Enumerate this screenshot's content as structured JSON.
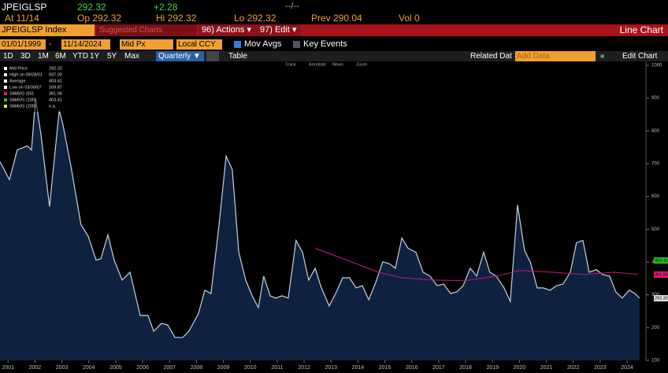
{
  "header": {
    "ticker": "JPEIGLSP",
    "last": "292.32",
    "change": "+2.28",
    "time": "--/--",
    "at": "At 11/14",
    "open": "Op 292.32",
    "high": "Hi 292.32",
    "low": "Lo 292.32",
    "prev": "Prev 290.04",
    "volume": "Vol 0"
  },
  "menu": {
    "security": "JPEIGLSP Index",
    "suggested": "Suggested Charts",
    "actions": "96) Actions ▾",
    "edit": "97) Edit ▾",
    "chart_type": "Line Chart"
  },
  "settings": {
    "start": "01/01/1999",
    "end": "11/14/2024",
    "field": "Mid Px",
    "currency": "Local CCY",
    "mov_avgs": "Mov Avgs",
    "key_events": "Key Events"
  },
  "toolbar": {
    "ranges": [
      "1D",
      "3D",
      "1M",
      "6M",
      "YTD",
      "1Y",
      "5Y",
      "Max"
    ],
    "period": "Quarterly ▼",
    "table": "Table",
    "related": "Related Dat",
    "add_data": "Add Data",
    "edit_chart": "Edit Chart"
  },
  "chart_tools": [
    "Track",
    "Annotate",
    "News",
    "Zoom"
  ],
  "legend": [
    {
      "name": "Mid Price",
      "value": "292.32",
      "color": "#ffffff"
    },
    {
      "name": "High on 09/28/01",
      "value": "937.00",
      "color": "#ffffff"
    },
    {
      "name": "Average",
      "value": "403.41",
      "color": "#ffffff"
    },
    {
      "name": "Low on 03/30/07",
      "value": "169.87",
      "color": "#ffffff"
    },
    {
      "name": "SMAVG (50)",
      "value": "361.06",
      "color": "#e0187a"
    },
    {
      "name": "SMAVG (100)",
      "value": "403.41",
      "color": "#22c022"
    },
    {
      "name": "SMAVG (200)",
      "value": "n.a.",
      "color": "#e8e840"
    }
  ],
  "value_tags": [
    {
      "text": "403.41",
      "color": "#22c022"
    },
    {
      "text": "361.06",
      "color": "#e0187a"
    },
    {
      "text": "292.32",
      "color": "#ffffff"
    }
  ],
  "chart_data": {
    "type": "area",
    "series": [
      {
        "name": "Mid Price",
        "color": "#c8d0dc",
        "x": [
          2000.7,
          2001.05,
          2001.34,
          2001.72,
          2001.87,
          2002.02,
          2002.22,
          2002.54,
          2002.9,
          2003.04,
          2003.33,
          2003.71,
          2003.98,
          2004.27,
          2004.45,
          2004.71,
          2004.94,
          2005.24,
          2005.53,
          2005.91,
          2006.2,
          2006.41,
          2006.7,
          2006.93,
          2007.2,
          2007.49,
          2007.72,
          2008.07,
          2008.31,
          2008.54,
          2008.84,
          2009.1,
          2009.33,
          2009.57,
          2009.83,
          2010.07,
          2010.3,
          2010.5,
          2010.74,
          2010.94,
          2011.18,
          2011.41,
          2011.7,
          2011.94,
          2012.17,
          2012.41,
          2012.64,
          2012.93,
          2013.2,
          2013.43,
          2013.69,
          2013.93,
          2014.16,
          2014.4,
          2014.66,
          2014.92,
          2015.19,
          2015.39,
          2015.63,
          2015.86,
          2016.15,
          2016.42,
          2016.68,
          2016.94,
          2017.18,
          2017.44,
          2017.67,
          2017.91,
          2018.17,
          2018.41,
          2018.67,
          2018.9,
          2019.14,
          2019.43,
          2019.66,
          2019.93,
          2020.19,
          2020.4,
          2020.66,
          2020.89,
          2021.13,
          2021.39,
          2021.62,
          2021.89,
          2022.12,
          2022.36,
          2022.59,
          2022.85,
          2023.09,
          2023.35,
          2023.58,
          2023.82,
          2024.08,
          2024.29,
          2024.46
        ],
        "values": [
          706,
          651,
          742,
          754,
          742,
          899,
          790,
          569,
          863,
          819,
          694,
          514,
          478,
          406,
          410,
          483,
          406,
          345,
          369,
          237,
          237,
          189,
          213,
          208,
          170,
          170,
          189,
          242,
          314,
          304,
          514,
          723,
          682,
          430,
          345,
          297,
          261,
          357,
          297,
          290,
          297,
          290,
          466,
          430,
          345,
          381,
          321,
          266,
          309,
          352,
          352,
          321,
          328,
          285,
          338,
          401,
          394,
          381,
          473,
          442,
          430,
          369,
          357,
          328,
          333,
          304,
          309,
          328,
          381,
          357,
          430,
          369,
          357,
          321,
          280,
          574,
          435,
          401,
          321,
          321,
          314,
          328,
          333,
          369,
          459,
          466,
          369,
          377,
          362,
          357,
          309,
          290,
          314,
          304,
          290
        ]
      },
      {
        "name": "SMAVG (50)",
        "color": "#c0187a",
        "x": [
          2012.41,
          2013.58,
          2014.75,
          2015.63,
          2016.8,
          2017.97,
          2019.14,
          2020.02,
          2021.19,
          2022.36,
          2023.53,
          2024.4
        ],
        "values": [
          442,
          406,
          369,
          352,
          345,
          343,
          357,
          374,
          369,
          362,
          369,
          362
        ]
      }
    ],
    "xlim": [
      2000.7,
      2024.7
    ],
    "xticks": [
      2001,
      2002,
      2003,
      2004,
      2005,
      2006,
      2007,
      2008,
      2009,
      2010,
      2011,
      2012,
      2013,
      2014,
      2015,
      2016,
      2017,
      2018,
      2019,
      2020,
      2021,
      2022,
      2023,
      2024
    ],
    "ylim": [
      100,
      1000
    ],
    "yticks": [
      100,
      200,
      300,
      400,
      500,
      600,
      700,
      800,
      900,
      1000
    ]
  }
}
